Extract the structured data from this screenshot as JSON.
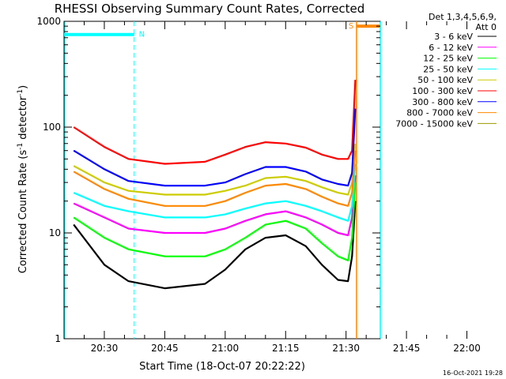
{
  "chart_data": {
    "type": "line",
    "title": "RHESSI Observing Summary Count Rates, Corrected",
    "ylabel_main": "Corrected Count Rate (s",
    "ylabel_sup1": "-1",
    "ylabel_mid": " detector",
    "ylabel_sup2": "-1",
    "ylabel_end": ")",
    "xlabel": "Start Time (18-Oct-07 20:22:22)",
    "yscale": "log",
    "ylim": [
      1,
      1000
    ],
    "xlim_minutes": [
      20.0,
      98.5
    ],
    "x_ticks": [
      {
        "label": "20:30",
        "minute": 30
      },
      {
        "label": "20:45",
        "minute": 45
      },
      {
        "label": "21:00",
        "minute": 60
      },
      {
        "label": "21:15",
        "minute": 75
      },
      {
        "label": "21:30",
        "minute": 90
      },
      {
        "label": "21:45",
        "minute": 105
      },
      {
        "label": "22:00",
        "minute": 120
      }
    ],
    "y_ticks": [
      {
        "label": "1",
        "value": 1
      },
      {
        "label": "10",
        "value": 10
      },
      {
        "label": "100",
        "value": 100
      },
      {
        "label": "1000",
        "value": 1000
      }
    ],
    "legend": {
      "placement": "right",
      "header1": "Det 1,3,4,5,6,9,",
      "header2": "Att 0"
    },
    "series": [
      {
        "name": "3 - 6 keV",
        "color": "#000000",
        "x_minutes": [
          22.4,
          30,
          36,
          45,
          55,
          60,
          65,
          70,
          75,
          80,
          84,
          88,
          90.5,
          91.5,
          92.3
        ],
        "y": [
          12,
          5,
          3.5,
          3,
          3.3,
          4.5,
          7,
          9,
          9.5,
          7.5,
          5,
          3.6,
          3.5,
          6,
          20
        ]
      },
      {
        "name": "6 - 12 keV",
        "color": "#ff00ff",
        "x_minutes": [
          22.4,
          30,
          36,
          45,
          55,
          60,
          65,
          70,
          75,
          80,
          84,
          88,
          90.5,
          91.5,
          92.3
        ],
        "y": [
          19,
          14,
          11,
          10,
          10,
          11,
          13,
          15,
          16,
          14,
          12,
          10,
          9.5,
          14,
          35
        ]
      },
      {
        "name": "12 - 25 keV",
        "color": "#00ff00",
        "x_minutes": [
          22.4,
          30,
          36,
          45,
          55,
          60,
          65,
          70,
          75,
          80,
          84,
          88,
          90.5,
          91.5,
          92.3
        ],
        "y": [
          14,
          9,
          7,
          6,
          6,
          7,
          9,
          12,
          13,
          11,
          8,
          6,
          5.5,
          9,
          30
        ]
      },
      {
        "name": "25 - 50 keV",
        "color": "#00ffff",
        "x_minutes": [
          22.4,
          30,
          36,
          45,
          55,
          60,
          65,
          70,
          75,
          80,
          84,
          88,
          90.5,
          91.5,
          92.3
        ],
        "y": [
          24,
          18,
          16,
          14,
          14,
          15,
          17,
          19,
          20,
          18,
          16,
          14,
          13,
          18,
          45
        ]
      },
      {
        "name": "50 - 100 keV",
        "color": "#cccc00",
        "x_minutes": [
          22.4,
          30,
          36,
          45,
          55,
          60,
          65,
          70,
          75,
          80,
          84,
          88,
          90.5,
          91.5,
          92.3
        ],
        "y": [
          43,
          30,
          25,
          23,
          23,
          25,
          28,
          33,
          34,
          31,
          27,
          24,
          23,
          30,
          70
        ]
      },
      {
        "name": "100 - 300 keV",
        "color": "#ff0000",
        "x_minutes": [
          22.4,
          30,
          36,
          45,
          55,
          60,
          65,
          70,
          75,
          80,
          84,
          88,
          90.5,
          91.5,
          92.3
        ],
        "y": [
          100,
          65,
          50,
          45,
          47,
          55,
          65,
          72,
          70,
          64,
          55,
          50,
          50,
          60,
          280
        ]
      },
      {
        "name": "300 - 800 keV",
        "color": "#0000ff",
        "x_minutes": [
          22.4,
          30,
          36,
          45,
          55,
          60,
          65,
          70,
          75,
          80,
          84,
          88,
          90.5,
          91.5,
          92.3
        ],
        "y": [
          60,
          40,
          31,
          28,
          28,
          30,
          36,
          42,
          42,
          38,
          32,
          29,
          28,
          37,
          150
        ]
      },
      {
        "name": "800 - 7000 keV",
        "color": "#ff8800",
        "x_minutes": [
          22.4,
          30,
          36,
          45,
          55,
          60,
          65,
          70,
          75,
          80,
          84,
          88,
          90.5,
          91.5,
          92.3
        ],
        "y": [
          38,
          26,
          21,
          18,
          18,
          20,
          24,
          28,
          29,
          26,
          22,
          19,
          18,
          24,
          60
        ]
      },
      {
        "name": "7000 - 15000 keV",
        "color": "#999900",
        "x_minutes": [],
        "y": []
      }
    ],
    "flag_bars": [
      {
        "label": "N",
        "color": "#00ffff",
        "value": 750,
        "start_minute": 20.0,
        "end_minute": 37.4
      },
      {
        "label": "",
        "color": "#00ffff",
        "value": 750,
        "start_minute": 104.3,
        "end_minute": 120.5
      },
      {
        "label": "S",
        "color": "#ff8800",
        "value": 900,
        "start_minute": 92.6,
        "end_minute": 120.5
      }
    ],
    "flag_lines": [
      {
        "color": "#00ffff",
        "minute": 37.4
      },
      {
        "color": "#00ffff",
        "minute": 104.3
      },
      {
        "color": "#ff8800",
        "minute": 120.5
      }
    ],
    "vertical_lines": [
      {
        "color": "#ff8800",
        "minute": 92.6
      },
      {
        "color": "#00ffff",
        "minute": 104.3
      }
    ]
  },
  "footer": {
    "timestamp": "16-Oct-2021 19:28"
  }
}
